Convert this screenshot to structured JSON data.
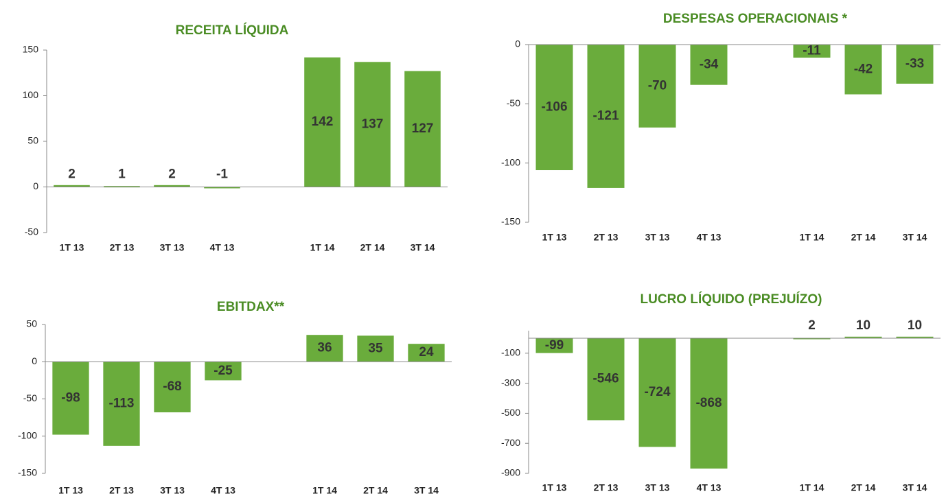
{
  "chart_data": [
    {
      "type": "bar",
      "title": "RECEITA LÍQUIDA",
      "color": "#6aac3c",
      "categories": [
        "1T 13",
        "2T 13",
        "3T 13",
        "4T 13",
        null,
        "1T 14",
        "2T 14",
        "3T 14"
      ],
      "values": [
        2,
        1,
        2,
        -1,
        null,
        142,
        137,
        127
      ],
      "ylim": [
        -50,
        150
      ],
      "yticks": [
        -50,
        0,
        50,
        100,
        150
      ]
    },
    {
      "type": "bar",
      "title": "DESPESAS OPERACIONAIS *",
      "color": "#6aac3c",
      "categories": [
        "1T 13",
        "2T 13",
        "3T 13",
        "4T 13",
        null,
        "1T 14",
        "2T 14",
        "3T 14"
      ],
      "values": [
        -106,
        -121,
        -70,
        -34,
        null,
        -11,
        -42,
        -33
      ],
      "ylim": [
        -150,
        0
      ],
      "yticks": [
        -150,
        -100,
        -50,
        0
      ]
    },
    {
      "type": "bar",
      "title": "EBITDAX**",
      "color": "#6aac3c",
      "categories": [
        "1T 13",
        "2T 13",
        "3T 13",
        "4T 13",
        null,
        "1T 14",
        "2T 14",
        "3T 14"
      ],
      "values": [
        -98,
        -113,
        -68,
        -25,
        null,
        36,
        35,
        24
      ],
      "ylim": [
        -150,
        50
      ],
      "yticks": [
        -150,
        -100,
        -50,
        0,
        50
      ]
    },
    {
      "type": "bar",
      "title": "LUCRO LÍQUIDO (PREJUÍZO)",
      "color": "#6aac3c",
      "categories": [
        "1T 13",
        "2T 13",
        "3T 13",
        "4T 13",
        null,
        "1T 14",
        "2T 14",
        "3T 14"
      ],
      "values": [
        -99,
        -546,
        -724,
        -868,
        null,
        2,
        10,
        10
      ],
      "ylim": [
        -900,
        50
      ],
      "yticks": [
        -900,
        -700,
        -500,
        -300,
        -100
      ]
    }
  ]
}
